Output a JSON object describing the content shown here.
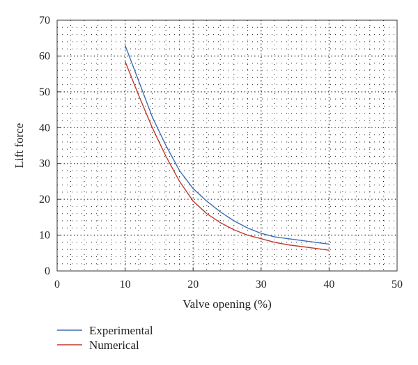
{
  "chart_data": {
    "type": "line",
    "title": "",
    "xlabel": "Valve opening (%)",
    "ylabel": "Lift force",
    "xlim": [
      0,
      50
    ],
    "ylim": [
      0,
      70
    ],
    "xticks": [
      0,
      10,
      20,
      30,
      40,
      50
    ],
    "yticks": [
      0,
      10,
      20,
      30,
      40,
      50,
      60,
      70
    ],
    "grid": true,
    "legend_position": "bottom-left",
    "series": [
      {
        "name": "Experimental",
        "color": "#3a6fb5",
        "x": [
          10,
          12,
          14,
          16,
          18,
          20,
          22,
          24,
          26,
          28,
          30,
          32,
          34,
          36,
          38,
          40
        ],
        "y": [
          63,
          53,
          43,
          35,
          28,
          23,
          19.5,
          16.5,
          14,
          12,
          10.5,
          9.5,
          9,
          8.5,
          8,
          7.5
        ]
      },
      {
        "name": "Numerical",
        "color": "#c0392b",
        "x": [
          10,
          12,
          14,
          16,
          18,
          20,
          22,
          24,
          26,
          28,
          30,
          32,
          34,
          36,
          38,
          40
        ],
        "y": [
          58.5,
          49,
          40,
          32,
          25,
          19.5,
          16,
          13.5,
          11.5,
          10,
          9,
          8,
          7.3,
          6.8,
          6.3,
          5.8
        ]
      }
    ]
  }
}
